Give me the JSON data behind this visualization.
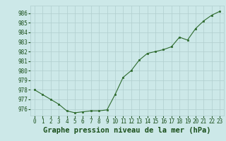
{
  "x": [
    0,
    1,
    2,
    3,
    4,
    5,
    6,
    7,
    8,
    9,
    10,
    11,
    12,
    13,
    14,
    15,
    16,
    17,
    18,
    19,
    20,
    21,
    22,
    23
  ],
  "y": [
    978.0,
    977.5,
    977.0,
    976.5,
    975.8,
    975.6,
    975.7,
    975.8,
    975.8,
    975.9,
    977.5,
    979.3,
    980.0,
    981.1,
    981.8,
    982.0,
    982.2,
    982.5,
    983.5,
    983.2,
    984.4,
    985.2,
    985.8,
    986.2
  ],
  "line_color": "#2d6a2d",
  "marker_color": "#2d6a2d",
  "bg_color": "#cce8e8",
  "grid_color": "#b0cece",
  "xlabel": "Graphe pression niveau de la mer (hPa)",
  "ylim": [
    975.3,
    986.8
  ],
  "yticks": [
    976,
    977,
    978,
    979,
    980,
    981,
    982,
    983,
    984,
    985,
    986
  ],
  "xticks": [
    0,
    1,
    2,
    3,
    4,
    5,
    6,
    7,
    8,
    9,
    10,
    11,
    12,
    13,
    14,
    15,
    16,
    17,
    18,
    19,
    20,
    21,
    22,
    23
  ],
  "tick_label_fontsize": 5.5,
  "xlabel_fontsize": 7.5,
  "text_color": "#1a4f1a"
}
